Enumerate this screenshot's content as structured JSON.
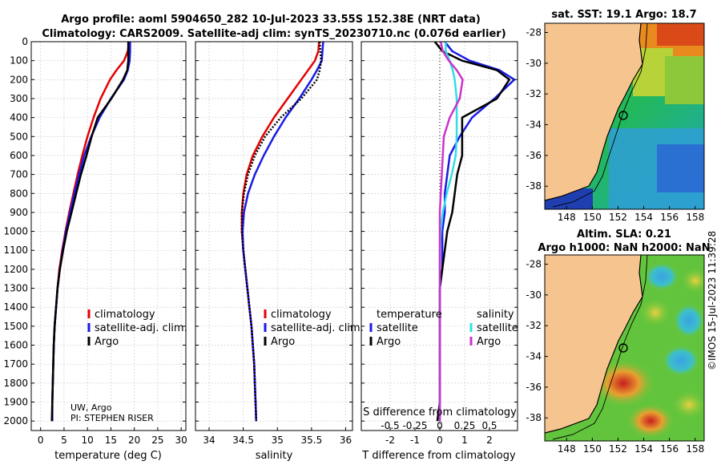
{
  "header": {
    "title_line1": "Argo profile: aoml 5904650_282 10-Jul-2023 33.55S 152.38E (NRT data)",
    "title_line2": "Climatology: CARS2009. Satellite-adj clim: synTS_20230710.nc (0.076d earlier)"
  },
  "credit": {
    "line1": "UW, Argo",
    "line2": "PI: STEPHEN RISER"
  },
  "timestamp": "©IMOS 15-Jul-2023 11:39:28",
  "colors": {
    "climatology": "#e60000",
    "satellite": "#1a1ae6",
    "argo": "#000000",
    "sat_salinity": "#33dde6",
    "argo_salinity": "#cc33cc",
    "land": "#f6c58f",
    "grid": "#c8c8c8"
  },
  "legend_common": {
    "climatology": "climatology",
    "satellite": "satellite-adj. clim.",
    "argo": "Argo"
  },
  "legend_diff": {
    "temperature": "temperature",
    "salinity": "salinity",
    "satellite": "satellite",
    "argo": "Argo"
  },
  "maps": {
    "sst_title": "sat. SST: 19.1 Argo: 18.7",
    "sla_title1": "Altim. SLA: 0.21",
    "sla_title2": "Argo h1000: NaN h2000: NaN",
    "xticks": [
      "148",
      "150",
      "152",
      "154",
      "156",
      "158"
    ],
    "yticks": [
      "-28",
      "-30",
      "-32",
      "-34",
      "-36",
      "-38"
    ]
  },
  "chart_data": [
    {
      "type": "line",
      "title": "",
      "xlabel": "temperature (deg C)",
      "ylabel": "",
      "xlim": [
        -2,
        31
      ],
      "ylim": [
        2050,
        0
      ],
      "xticks": [
        "0",
        "5",
        "10",
        "15",
        "20",
        "25",
        "30"
      ],
      "yticks": [
        "0",
        "100",
        "200",
        "300",
        "400",
        "500",
        "600",
        "700",
        "800",
        "900",
        "1000",
        "1100",
        "1200",
        "1300",
        "1400",
        "1500",
        "1600",
        "1700",
        "1800",
        "1900",
        "2000"
      ],
      "depth": [
        0,
        50,
        100,
        150,
        200,
        300,
        400,
        500,
        600,
        700,
        800,
        900,
        1000,
        1100,
        1200,
        1300,
        1400,
        1500,
        1600,
        1700,
        1800,
        1900,
        2000
      ],
      "series": [
        {
          "name": "climatology",
          "values": [
            18.9,
            18.6,
            17.8,
            16.2,
            14.8,
            12.8,
            11.3,
            10.0,
            8.9,
            7.9,
            7.0,
            6.1,
            5.3,
            4.6,
            4.0,
            3.6,
            3.3,
            3.0,
            2.8,
            2.7,
            2.6,
            2.5,
            2.5
          ]
        },
        {
          "name": "satellite-adj. clim.",
          "values": [
            19.1,
            19.1,
            19.0,
            18.6,
            17.8,
            15.0,
            12.6,
            10.8,
            9.3,
            8.2,
            7.2,
            6.3,
            5.4,
            4.7,
            4.1,
            3.6,
            3.3,
            3.0,
            2.8,
            2.7,
            2.6,
            2.5,
            2.5
          ]
        },
        {
          "name": "Argo",
          "values": [
            18.7,
            18.7,
            18.7,
            18.5,
            17.6,
            15.1,
            12.2,
            10.9,
            9.8,
            8.6,
            7.6,
            6.6,
            5.6,
            4.8,
            4.1,
            3.6,
            3.3,
            3.0,
            2.8,
            2.7,
            2.6,
            2.5,
            2.4
          ]
        }
      ]
    },
    {
      "type": "line",
      "title": "",
      "xlabel": "salinity",
      "ylabel": "",
      "xlim": [
        33.8,
        36.1
      ],
      "ylim": [
        2050,
        0
      ],
      "xticks": [
        "34",
        "34.5",
        "35",
        "35.5",
        "36"
      ],
      "depth": [
        0,
        50,
        100,
        150,
        200,
        300,
        400,
        500,
        600,
        700,
        800,
        900,
        1000,
        1100,
        1200,
        1300,
        1400,
        1500,
        1600,
        1700,
        1800,
        1900,
        2000
      ],
      "series": [
        {
          "name": "climatology",
          "values": [
            35.61,
            35.6,
            35.55,
            35.45,
            35.35,
            35.15,
            34.95,
            34.78,
            34.64,
            34.55,
            34.5,
            34.48,
            34.48,
            34.5,
            34.53,
            34.56,
            34.59,
            34.62,
            34.64,
            34.66,
            34.67,
            34.68,
            34.69
          ]
        },
        {
          "name": "satellite-adj. clim.",
          "values": [
            35.67,
            35.66,
            35.65,
            35.58,
            35.5,
            35.32,
            35.12,
            34.95,
            34.8,
            34.67,
            34.57,
            34.51,
            34.49,
            34.5,
            34.53,
            34.56,
            34.59,
            34.62,
            34.64,
            34.66,
            34.67,
            34.68,
            34.69
          ]
        },
        {
          "name": "Argo",
          "values": [
            35.62,
            35.63,
            35.64,
            35.62,
            35.58,
            35.35,
            35.05,
            34.82,
            34.67,
            34.57,
            34.51,
            34.48,
            34.48,
            34.5,
            34.53,
            34.56,
            34.59,
            34.62,
            34.64,
            34.66,
            34.67,
            34.68,
            34.69
          ]
        }
      ]
    },
    {
      "type": "line",
      "title": "",
      "xlabel": "T difference from climatology",
      "ylabel": "",
      "secondary_xlabel": "S difference from climatology",
      "xlim": [
        -2.9,
        3.0
      ],
      "ylim": [
        2050,
        0
      ],
      "xticks": [
        "-2",
        "-1",
        "0",
        "1",
        "2"
      ],
      "secondary_xticks": [
        "-0.5",
        "-0.25",
        "0",
        "0.25",
        "0.5"
      ],
      "depth": [
        0,
        50,
        100,
        150,
        200,
        300,
        400,
        500,
        600,
        700,
        800,
        900,
        1000,
        1100,
        1200,
        1300,
        1400,
        1500,
        1600,
        1700,
        1800,
        1900,
        2000
      ],
      "series": [
        {
          "name": "T satellite",
          "values": [
            0.2,
            0.5,
            1.2,
            2.4,
            3.0,
            2.2,
            1.3,
            0.8,
            0.4,
            0.3,
            0.2,
            0.2,
            0.1,
            0.1,
            0.1,
            0.0,
            0.0,
            0.0,
            0.0,
            0.0,
            0.0,
            0.0,
            0.0
          ]
        },
        {
          "name": "T Argo",
          "values": [
            -0.2,
            0.1,
            0.9,
            2.3,
            2.8,
            2.3,
            0.9,
            0.9,
            0.9,
            0.7,
            0.6,
            0.5,
            0.3,
            0.2,
            0.1,
            0.0,
            0.0,
            0.0,
            0.0,
            0.0,
            0.0,
            0.0,
            -0.1
          ]
        },
        {
          "name": "S satellite",
          "values": [
            0.06,
            0.06,
            0.1,
            0.13,
            0.15,
            0.17,
            0.17,
            0.17,
            0.16,
            0.12,
            0.07,
            0.03,
            0.01,
            0.0,
            0.0,
            0.0,
            0.0,
            0.0,
            0.0,
            0.0,
            0.0,
            0.0,
            0.0
          ]
        },
        {
          "name": "S Argo",
          "values": [
            0.01,
            0.03,
            0.09,
            0.17,
            0.23,
            0.2,
            0.1,
            0.04,
            0.03,
            0.02,
            0.01,
            0.0,
            0.0,
            0.0,
            0.0,
            0.0,
            0.0,
            0.0,
            0.0,
            0.0,
            0.0,
            0.0,
            0.0
          ]
        }
      ]
    }
  ]
}
